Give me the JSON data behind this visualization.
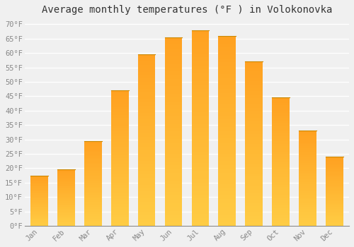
{
  "title": "Average monthly temperatures (°F ) in Volokonovka",
  "months": [
    "Jan",
    "Feb",
    "Mar",
    "Apr",
    "May",
    "Jun",
    "Jul",
    "Aug",
    "Sep",
    "Oct",
    "Nov",
    "Dec"
  ],
  "values": [
    17.5,
    19.5,
    29.5,
    47.0,
    59.5,
    65.5,
    68.0,
    66.0,
    57.0,
    44.5,
    33.0,
    24.0
  ],
  "bar_color_bottom": "#FFCC44",
  "bar_color_top": "#FFA020",
  "bar_edge_color": "#CC8800",
  "ylim": [
    0,
    72
  ],
  "yticks": [
    0,
    5,
    10,
    15,
    20,
    25,
    30,
    35,
    40,
    45,
    50,
    55,
    60,
    65,
    70
  ],
  "background_color": "#F0F0F0",
  "plot_bg_color": "#F0F0F0",
  "grid_color": "#FFFFFF",
  "title_fontsize": 10,
  "tick_fontsize": 7.5,
  "tick_color": "#888888",
  "font_family": "monospace",
  "bar_width": 0.65
}
